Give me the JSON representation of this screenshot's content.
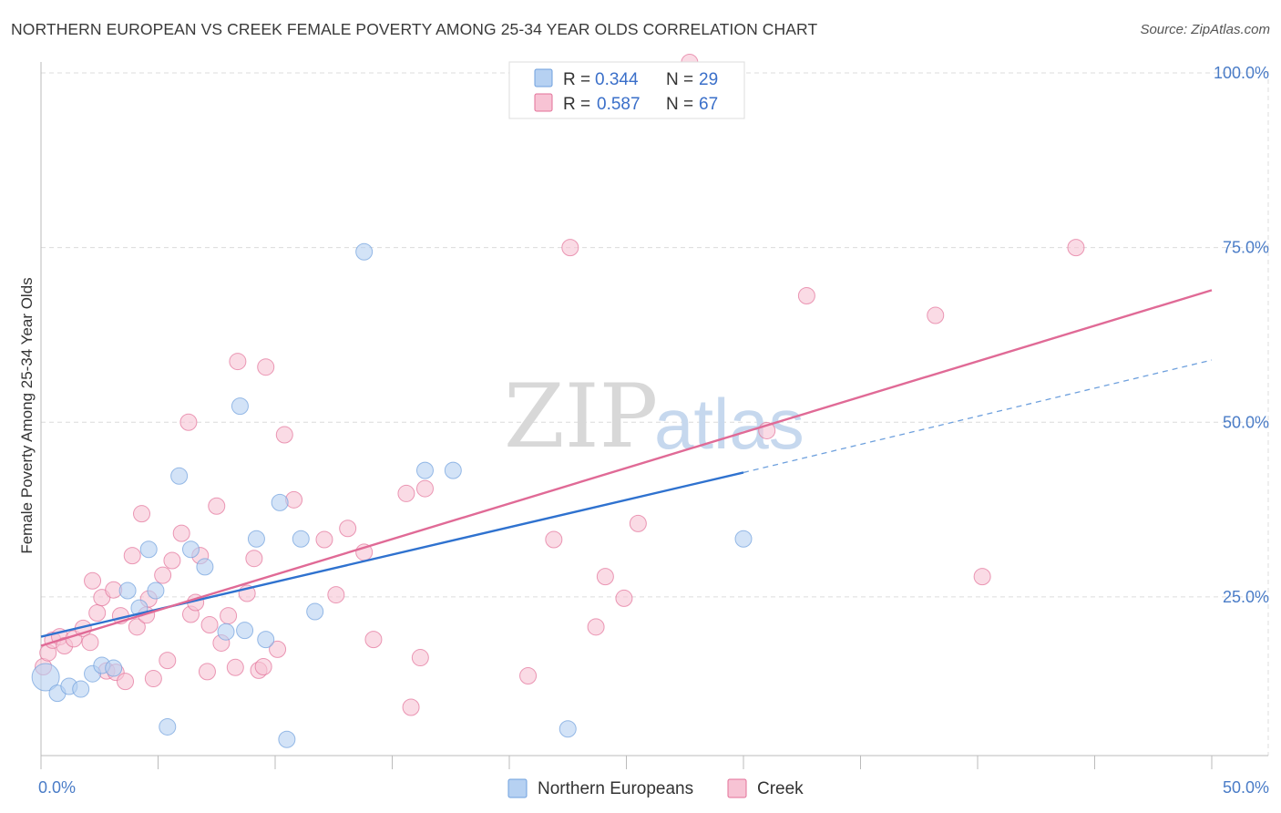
{
  "title": "NORTHERN EUROPEAN VS CREEK FEMALE POVERTY AMONG 25-34 YEAR OLDS CORRELATION CHART",
  "source": "Source: ZipAtlas.com",
  "watermark": {
    "zip": "ZIP",
    "atlas": "atlas"
  },
  "legend": {
    "r_label": "R =",
    "n_label": "N =",
    "rows": [
      {
        "r": "0.344",
        "n": "29",
        "color": "#a9c8f0"
      },
      {
        "r": "0.587",
        "n": "67",
        "color": "#f5b8cc"
      }
    ]
  },
  "chart_data": {
    "type": "scatter",
    "title": "NORTHERN EUROPEAN VS CREEK FEMALE POVERTY AMONG 25-34 YEAR OLDS CORRELATION CHART",
    "xlabel": "",
    "ylabel": "Female Poverty Among 25-34 Year Olds",
    "xlim": [
      0,
      50
    ],
    "ylim": [
      0,
      100
    ],
    "x_tick_labels": [
      "0.0%",
      "50.0%"
    ],
    "y_tick_labels": [
      "25.0%",
      "50.0%",
      "75.0%",
      "100.0%"
    ],
    "y_ticks": [
      25,
      50,
      75,
      100
    ],
    "grid": true,
    "legend_position": "top-center",
    "series": [
      {
        "name": "Northern Europeans",
        "color": "#6fa0dd",
        "fill": "#b6d1f2",
        "r": 0.344,
        "n": 29,
        "trend": {
          "x0": 0,
          "y0": 19.3,
          "x1": 30,
          "y1": 42.8,
          "dash_to_x": 50,
          "dash_to_y": 58.9
        },
        "points": [
          [
            0.2,
            13.5
          ],
          [
            0.7,
            11.2
          ],
          [
            1.2,
            12.2
          ],
          [
            1.7,
            11.8
          ],
          [
            2.2,
            14.0
          ],
          [
            2.6,
            15.2
          ],
          [
            3.1,
            14.8
          ],
          [
            3.7,
            25.9
          ],
          [
            4.2,
            23.4
          ],
          [
            4.6,
            31.8
          ],
          [
            4.9,
            25.9
          ],
          [
            5.4,
            6.4
          ],
          [
            5.9,
            42.3
          ],
          [
            6.4,
            31.8
          ],
          [
            7.0,
            29.3
          ],
          [
            7.9,
            20.0
          ],
          [
            8.5,
            52.3
          ],
          [
            8.7,
            20.2
          ],
          [
            9.2,
            33.3
          ],
          [
            9.6,
            18.9
          ],
          [
            10.2,
            38.5
          ],
          [
            10.5,
            4.6
          ],
          [
            11.1,
            33.3
          ],
          [
            11.7,
            22.9
          ],
          [
            13.8,
            74.4
          ],
          [
            16.4,
            43.1
          ],
          [
            17.6,
            43.1
          ],
          [
            22.5,
            6.1
          ],
          [
            30.0,
            33.3
          ]
        ]
      },
      {
        "name": "Creek",
        "color": "#e37099",
        "fill": "#f7c3d4",
        "r": 0.587,
        "n": 67,
        "trend": {
          "x0": 0,
          "y0": 18.0,
          "x1": 50,
          "y1": 68.9
        },
        "points": [
          [
            0.1,
            15.0
          ],
          [
            0.3,
            17.0
          ],
          [
            0.5,
            18.8
          ],
          [
            0.8,
            19.3
          ],
          [
            1.0,
            18.0
          ],
          [
            1.4,
            19.0
          ],
          [
            1.8,
            20.5
          ],
          [
            2.1,
            18.5
          ],
          [
            2.2,
            27.3
          ],
          [
            2.4,
            22.7
          ],
          [
            2.6,
            24.9
          ],
          [
            2.8,
            14.4
          ],
          [
            3.1,
            26.0
          ],
          [
            3.2,
            14.2
          ],
          [
            3.4,
            22.3
          ],
          [
            3.6,
            12.9
          ],
          [
            3.9,
            30.9
          ],
          [
            4.1,
            20.7
          ],
          [
            4.3,
            36.9
          ],
          [
            4.5,
            22.4
          ],
          [
            4.6,
            24.7
          ],
          [
            4.8,
            13.3
          ],
          [
            5.2,
            28.1
          ],
          [
            5.4,
            15.9
          ],
          [
            5.6,
            30.2
          ],
          [
            6.0,
            34.1
          ],
          [
            6.3,
            50.0
          ],
          [
            6.4,
            22.5
          ],
          [
            6.6,
            24.2
          ],
          [
            6.8,
            30.9
          ],
          [
            7.1,
            14.3
          ],
          [
            7.2,
            21.0
          ],
          [
            7.5,
            38.0
          ],
          [
            7.7,
            18.4
          ],
          [
            8.0,
            22.3
          ],
          [
            8.3,
            14.9
          ],
          [
            8.4,
            58.7
          ],
          [
            8.8,
            25.5
          ],
          [
            9.1,
            30.5
          ],
          [
            9.3,
            14.5
          ],
          [
            9.5,
            15.0
          ],
          [
            9.6,
            57.9
          ],
          [
            10.1,
            17.5
          ],
          [
            10.4,
            48.2
          ],
          [
            10.8,
            38.9
          ],
          [
            12.1,
            33.2
          ],
          [
            12.6,
            25.3
          ],
          [
            13.1,
            34.8
          ],
          [
            13.8,
            31.4
          ],
          [
            14.2,
            18.9
          ],
          [
            15.6,
            39.8
          ],
          [
            15.8,
            9.2
          ],
          [
            16.2,
            16.3
          ],
          [
            16.4,
            40.5
          ],
          [
            20.8,
            13.7
          ],
          [
            21.9,
            33.2
          ],
          [
            22.6,
            75.0
          ],
          [
            23.7,
            20.7
          ],
          [
            24.1,
            27.9
          ],
          [
            24.9,
            24.8
          ],
          [
            25.5,
            35.5
          ],
          [
            31.0,
            48.8
          ],
          [
            32.7,
            68.1
          ],
          [
            38.2,
            65.3
          ],
          [
            40.2,
            27.9
          ],
          [
            44.2,
            75.0
          ],
          [
            27.7,
            101.5
          ]
        ]
      }
    ]
  },
  "bottom_legend": [
    {
      "label": "Northern Europeans"
    },
    {
      "label": "Creek"
    }
  ]
}
